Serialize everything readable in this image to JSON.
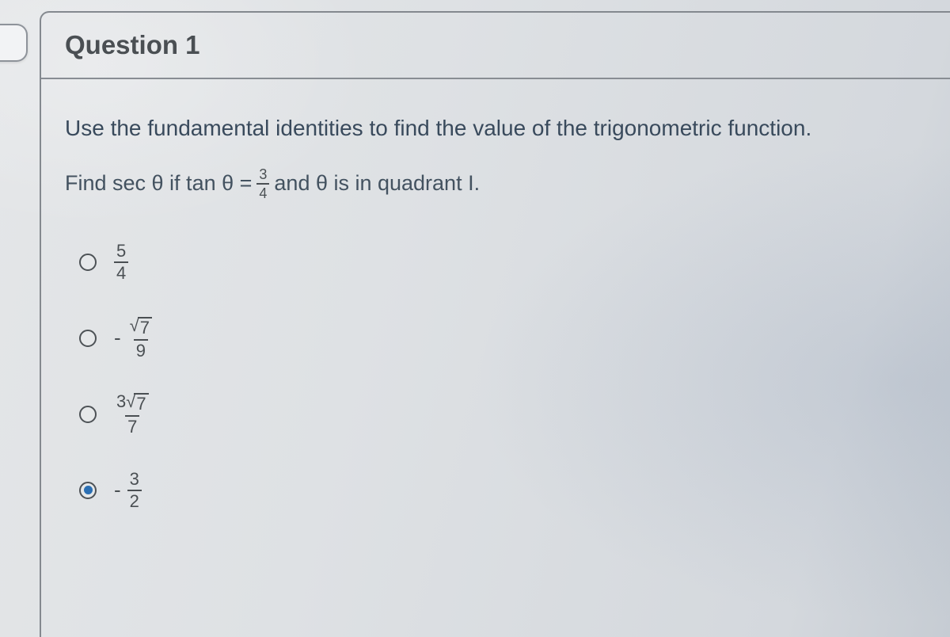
{
  "question": {
    "title": "Question 1",
    "prompt": "Use the fundamental identities to find the value of the trigonometric function.",
    "sub_lead": "Find sec θ if tan θ =",
    "sub_frac_num": "3",
    "sub_frac_den": "4",
    "sub_tail": "and θ is in quadrant I."
  },
  "options": [
    {
      "id": "a",
      "selected": false,
      "sign": "",
      "num_pre": "",
      "num_sqrt": "",
      "num_plain": "5",
      "den": "4"
    },
    {
      "id": "b",
      "selected": false,
      "sign": "-",
      "num_pre": "",
      "num_sqrt": "7",
      "num_plain": "",
      "den": "9"
    },
    {
      "id": "c",
      "selected": false,
      "sign": "",
      "num_pre": "3",
      "num_sqrt": "7",
      "num_plain": "",
      "den": "7"
    },
    {
      "id": "d",
      "selected": true,
      "sign": "-",
      "num_pre": "",
      "num_sqrt": "",
      "num_plain": "3",
      "den": "2"
    }
  ],
  "style": {
    "accent": "#2b6fb3",
    "text": "#4a4f53",
    "prompt": "#394a5c",
    "border": "#84898f"
  }
}
